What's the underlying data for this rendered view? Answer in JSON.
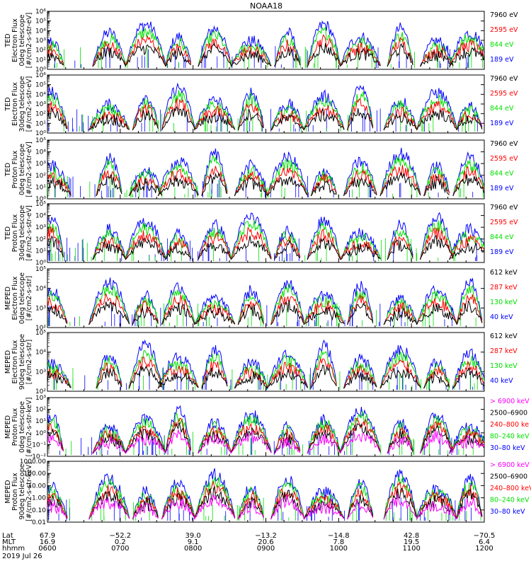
{
  "title": "NOAA18",
  "date": "2019 Jul 26",
  "colors": {
    "black": "#000000",
    "red": "#ff0000",
    "green": "#00e000",
    "blue": "#0000ff",
    "magenta": "#ff00ff"
  },
  "bottom_axis": {
    "row_labels": [
      "Lat",
      "MLT",
      "hhmm"
    ],
    "ticks": [
      {
        "lat": "67.9",
        "mlt": "16.9",
        "hhmm": "0600"
      },
      {
        "lat": "−52.2",
        "mlt": "0.2",
        "hhmm": "0700"
      },
      {
        "lat": "39.0",
        "mlt": "9.1",
        "hhmm": "0800"
      },
      {
        "lat": "−13.2",
        "mlt": "20.6",
        "hhmm": "0900"
      },
      {
        "lat": "−14.8",
        "mlt": "7.8",
        "hhmm": "1000"
      },
      {
        "lat": "42.8",
        "mlt": "19.5",
        "hhmm": "1100"
      },
      {
        "lat": "−70.5",
        "mlt": "6.4",
        "hhmm": "1200"
      }
    ]
  },
  "chart_data": [
    {
      "type": "line",
      "ylabel": [
        "TED",
        "Electron Flux",
        "0deg telescope",
        "[#/cm2-s-str-eV]"
      ],
      "ylog": true,
      "ylim": [
        1,
        1000000
      ],
      "tick_labels": [
        "10⁰",
        "10¹",
        "10²",
        "10³",
        "10⁴",
        "10⁵",
        "10⁶"
      ],
      "x_range": [
        "0600",
        "1200"
      ],
      "series": [
        {
          "name": "7960 eV",
          "color": "black"
        },
        {
          "name": "2595 eV",
          "color": "red"
        },
        {
          "name": "844 eV",
          "color": "green"
        },
        {
          "name": "189 eV",
          "color": "blue"
        }
      ]
    },
    {
      "type": "line",
      "ylabel": [
        "TED",
        "Electron Flux",
        "30deg telescope",
        "[#/cm2-s-str-eV]"
      ],
      "ylog": true,
      "ylim": [
        1,
        1000000
      ],
      "tick_labels": [
        "10⁰",
        "10¹",
        "10²",
        "10³",
        "10⁴",
        "10⁵",
        "10⁶"
      ],
      "x_range": [
        "0600",
        "1200"
      ],
      "series": [
        {
          "name": "7960 eV",
          "color": "black"
        },
        {
          "name": "2595 eV",
          "color": "red"
        },
        {
          "name": "844 eV",
          "color": "green"
        },
        {
          "name": "189 eV",
          "color": "blue"
        }
      ]
    },
    {
      "type": "line",
      "ylabel": [
        "TED",
        "Proton Flux",
        "0deg telescope",
        "[#/cm2-s-str-eV]"
      ],
      "ylog": true,
      "ylim": [
        1,
        100000
      ],
      "tick_labels": [
        "10⁰",
        "10¹",
        "10²",
        "10³",
        "10⁴",
        "10⁵"
      ],
      "x_range": [
        "0600",
        "1200"
      ],
      "series": [
        {
          "name": "7960 eV",
          "color": "black"
        },
        {
          "name": "2595 eV",
          "color": "red"
        },
        {
          "name": "844 eV",
          "color": "green"
        },
        {
          "name": "189 eV",
          "color": "blue"
        }
      ]
    },
    {
      "type": "line",
      "ylabel": [
        "TED",
        "Proton Flux",
        "30deg telescope",
        "[#/cm2-s-str-eV]"
      ],
      "ylog": true,
      "ylim": [
        1,
        100000
      ],
      "tick_labels": [
        "10⁰",
        "10¹",
        "10²",
        "10³",
        "10⁴",
        "10⁵"
      ],
      "x_range": [
        "0600",
        "1200"
      ],
      "series": [
        {
          "name": "7960 eV",
          "color": "black"
        },
        {
          "name": "2595 eV",
          "color": "red"
        },
        {
          "name": "844 eV",
          "color": "green"
        },
        {
          "name": "189 eV",
          "color": "blue"
        }
      ]
    },
    {
      "type": "line",
      "ylabel": [
        "MEPED",
        "Electron Flux",
        "0deg telescope",
        "[#/cm2-s-str]"
      ],
      "ylog": true,
      "ylim": [
        100,
        100000
      ],
      "tick_labels": [
        "10²",
        "10³",
        "10⁴",
        "10⁵"
      ],
      "x_range": [
        "0600",
        "1200"
      ],
      "series": [
        {
          "name": "612 keV",
          "color": "black"
        },
        {
          "name": "287 keV",
          "color": "red"
        },
        {
          "name": "130 keV",
          "color": "green"
        },
        {
          "name": "40 keV",
          "color": "blue"
        }
      ]
    },
    {
      "type": "line",
      "ylabel": [
        "MEPED",
        "Electron Flux",
        "90deg telescope",
        "[#/cm2-s-str]"
      ],
      "ylog": true,
      "ylim": [
        100,
        100000
      ],
      "tick_labels": [
        "10²",
        "10³",
        "10⁴",
        "10⁵"
      ],
      "x_range": [
        "0600",
        "1200"
      ],
      "series": [
        {
          "name": "612 keV",
          "color": "black"
        },
        {
          "name": "287 keV",
          "color": "red"
        },
        {
          "name": "130 keV",
          "color": "green"
        },
        {
          "name": "40 keV",
          "color": "blue"
        }
      ]
    },
    {
      "type": "line",
      "ylabel": [
        "MEPED",
        "Proton Flux",
        "0deg telescope",
        "[#/cm2-s-str-keV]"
      ],
      "ylog": true,
      "ylim": [
        0.01,
        1000
      ],
      "tick_labels": [
        "10⁻²",
        "10⁻¹",
        "10⁰",
        "10¹",
        "10²",
        "10³"
      ],
      "x_range": [
        "0600",
        "1200"
      ],
      "series": [
        {
          "name": "> 6900 keV",
          "color": "magenta"
        },
        {
          "name": "2500–6900",
          "color": "black"
        },
        {
          "name": "240–800 ke",
          "color": "red"
        },
        {
          "name": "80–240 keV",
          "color": "green"
        },
        {
          "name": "30–80 keV",
          "color": "blue"
        }
      ]
    },
    {
      "type": "line",
      "ylabel": [
        "MEPED",
        "Proton Flux",
        "90deg telescope",
        "[#/cm2-s-str-keV]"
      ],
      "ylog": true,
      "ylim": [
        0.01,
        1000
      ],
      "tick_labels": [
        "0.01",
        "0.10",
        "1.00",
        "10.00",
        "100.00",
        "1000.00"
      ],
      "x_range": [
        "0600",
        "1200"
      ],
      "series": [
        {
          "name": "> 6900 keV",
          "color": "magenta"
        },
        {
          "name": "2500–6900",
          "color": "black"
        },
        {
          "name": "240–800 keV",
          "color": "red"
        },
        {
          "name": "80–240 keV",
          "color": "green"
        },
        {
          "name": "30–80 keV",
          "color": "blue"
        }
      ]
    }
  ]
}
